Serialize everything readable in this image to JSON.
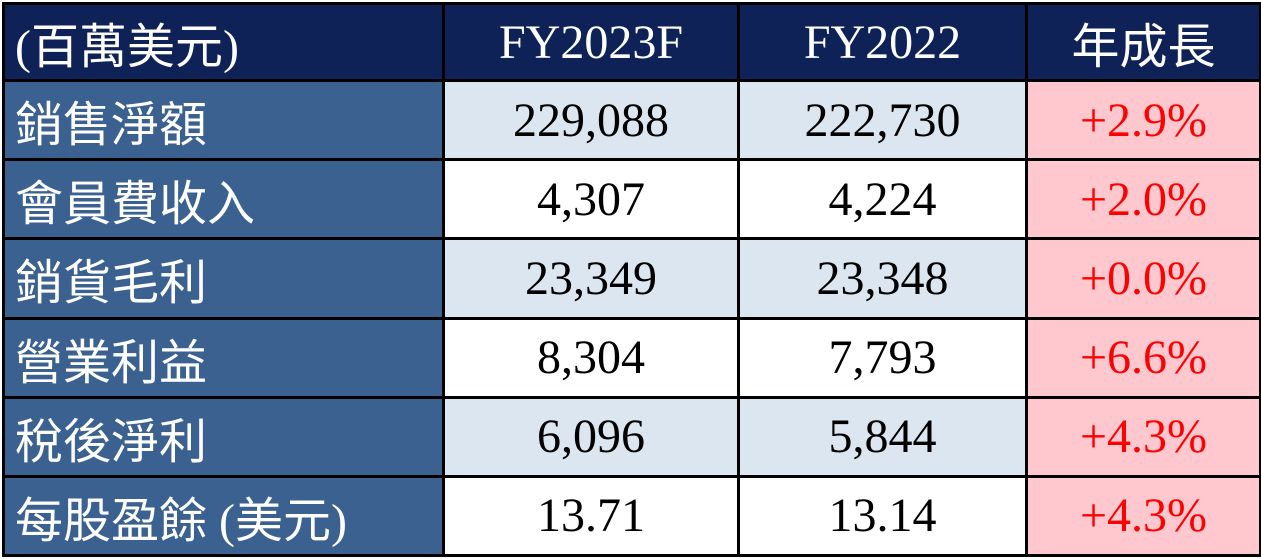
{
  "header": [
    "(百萬美元)",
    "FY2023F",
    "FY2022",
    "年成長"
  ],
  "rows": [
    {
      "label": "銷售淨額",
      "fy2023f": "229,088",
      "fy2022": "222,730",
      "growth": "+2.9%"
    },
    {
      "label": "會員費收入",
      "fy2023f": "4,307",
      "fy2022": "4,224",
      "growth": "+2.0%"
    },
    {
      "label": "銷貨毛利",
      "fy2023f": "23,349",
      "fy2022": "23,348",
      "growth": "+0.0%"
    },
    {
      "label": "營業利益",
      "fy2023f": "8,304",
      "fy2022": "7,793",
      "growth": "+6.6%"
    },
    {
      "label": "稅後淨利",
      "fy2023f": "6,096",
      "fy2022": "5,844",
      "growth": "+4.3%"
    },
    {
      "label": "每股盈餘 (美元)",
      "fy2023f": "13.71",
      "fy2022": "13.14",
      "growth": "+4.3%"
    }
  ],
  "colors": {
    "header_bg": "#0e2257",
    "label_bg": "#3b6190",
    "shade_bg": "#dce6f1",
    "growth_bg": "#ffc7ce",
    "growth_text": "#ff0000"
  }
}
